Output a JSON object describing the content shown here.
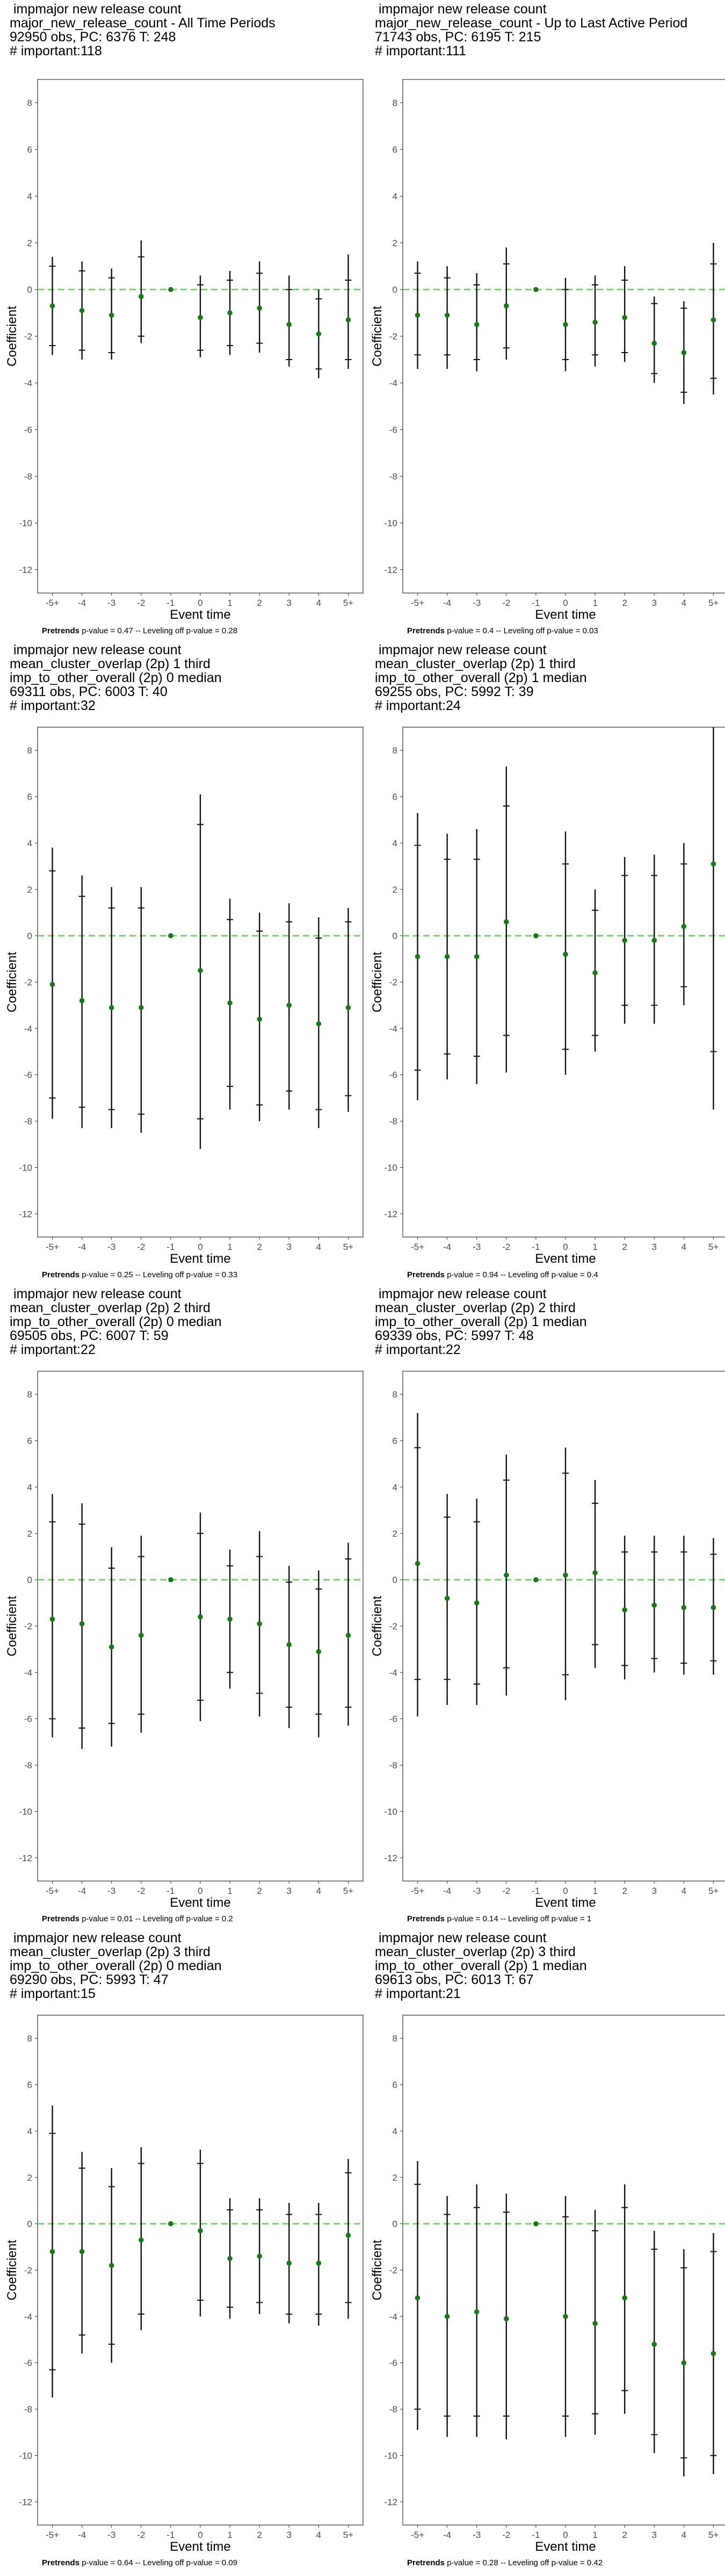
{
  "chart_data": [
    {
      "type": "scatter",
      "title_lines": [
        " impmajor new release count",
        "major_new_release_count - All Time Periods",
        "92950 obs, PC: 6376 T: 248",
        "# important:118"
      ],
      "xlabel": "Event time",
      "ylabel": "Coefficient",
      "categories": [
        "-5+",
        "-4",
        "-3",
        "-2",
        "-1",
        "0",
        "1",
        "2",
        "3",
        "4",
        "5+"
      ],
      "ylim": [
        -13,
        9
      ],
      "yticks": [
        -12,
        -10,
        -8,
        -6,
        -4,
        -2,
        0,
        2,
        4,
        6,
        8
      ],
      "estimate": [
        -0.7,
        -0.9,
        -1.1,
        -0.3,
        0,
        -1.2,
        -1.0,
        -0.8,
        -1.5,
        -1.9,
        -1.3
      ],
      "ci90": [
        [
          -2.4,
          1.0
        ],
        [
          -2.6,
          0.8
        ],
        [
          -2.7,
          0.5
        ],
        [
          -2.0,
          1.4
        ],
        [
          0,
          0
        ],
        [
          -2.6,
          0.2
        ],
        [
          -2.4,
          0.4
        ],
        [
          -2.3,
          0.7
        ],
        [
          -3.0,
          0.0
        ],
        [
          -3.4,
          -0.4
        ],
        [
          -3.0,
          0.4
        ]
      ],
      "ci95": [
        [
          -2.8,
          1.4
        ],
        [
          -3.0,
          1.2
        ],
        [
          -3.0,
          0.9
        ],
        [
          -2.3,
          2.1
        ],
        [
          0,
          0
        ],
        [
          -2.9,
          0.6
        ],
        [
          -2.8,
          0.8
        ],
        [
          -2.7,
          1.2
        ],
        [
          -3.3,
          0.6
        ],
        [
          -3.8,
          0.0
        ],
        [
          -3.4,
          1.5
        ]
      ],
      "ref_line": 0,
      "footnote_prefix": "Pretrends",
      "footnote": " p-value = 0.47 -- Leveling off p-value = 0.28"
    },
    {
      "type": "scatter",
      "title_lines": [
        " impmajor new release count",
        "major_new_release_count - Up to Last Active Period",
        "71743 obs, PC: 6195 T: 215",
        "# important:111"
      ],
      "xlabel": "Event time",
      "ylabel": "Coefficient",
      "categories": [
        "-5+",
        "-4",
        "-3",
        "-2",
        "-1",
        "0",
        "1",
        "2",
        "3",
        "4",
        "5+"
      ],
      "ylim": [
        -13,
        9
      ],
      "yticks": [
        -12,
        -10,
        -8,
        -6,
        -4,
        -2,
        0,
        2,
        4,
        6,
        8
      ],
      "estimate": [
        -1.1,
        -1.1,
        -1.5,
        -0.7,
        0,
        -1.5,
        -1.4,
        -1.2,
        -2.3,
        -2.7,
        -1.3
      ],
      "ci90": [
        [
          -2.8,
          0.7
        ],
        [
          -2.8,
          0.5
        ],
        [
          -3.0,
          0.2
        ],
        [
          -2.5,
          1.1
        ],
        [
          0,
          0
        ],
        [
          -3.0,
          0.0
        ],
        [
          -2.8,
          0.2
        ],
        [
          -2.7,
          0.4
        ],
        [
          -3.6,
          -0.6
        ],
        [
          -4.4,
          -0.8
        ],
        [
          -3.8,
          1.1
        ]
      ],
      "ci95": [
        [
          -3.4,
          1.2
        ],
        [
          -3.4,
          1.0
        ],
        [
          -3.5,
          0.7
        ],
        [
          -3.0,
          1.8
        ],
        [
          0,
          0
        ],
        [
          -3.5,
          0.5
        ],
        [
          -3.3,
          0.6
        ],
        [
          -3.1,
          1.0
        ],
        [
          -4.0,
          -0.3
        ],
        [
          -4.9,
          -0.5
        ],
        [
          -4.5,
          2.0
        ]
      ],
      "ref_line": 0,
      "footnote_prefix": "Pretrends",
      "footnote": " p-value = 0.4 -- Leveling off p-value = 0.03"
    },
    {
      "type": "scatter",
      "title_lines": [
        " impmajor new release count",
        "mean_cluster_overlap (2p) 1 third",
        "imp_to_other_overall (2p) 0 median",
        "69311 obs, PC: 6003 T: 40",
        "# important:32"
      ],
      "xlabel": "Event time",
      "ylabel": "Coefficient",
      "categories": [
        "-5+",
        "-4",
        "-3",
        "-2",
        "-1",
        "0",
        "1",
        "2",
        "3",
        "4",
        "5+"
      ],
      "ylim": [
        -13,
        9
      ],
      "yticks": [
        -12,
        -10,
        -8,
        -6,
        -4,
        -2,
        0,
        2,
        4,
        6,
        8
      ],
      "estimate": [
        -2.1,
        -2.8,
        -3.1,
        -3.1,
        0,
        -1.5,
        -2.9,
        -3.6,
        -3.0,
        -3.8,
        -3.1
      ],
      "ci90": [
        [
          -7.0,
          2.8
        ],
        [
          -7.4,
          1.7
        ],
        [
          -7.5,
          1.2
        ],
        [
          -7.7,
          1.2
        ],
        [
          0,
          0
        ],
        [
          -7.9,
          4.8
        ],
        [
          -6.5,
          0.7
        ],
        [
          -7.3,
          0.2
        ],
        [
          -6.7,
          0.6
        ],
        [
          -7.5,
          -0.1
        ],
        [
          -6.9,
          0.6
        ]
      ],
      "ci95": [
        [
          -7.9,
          3.8
        ],
        [
          -8.3,
          2.6
        ],
        [
          -8.3,
          2.1
        ],
        [
          -8.5,
          2.1
        ],
        [
          0,
          0
        ],
        [
          -9.2,
          6.1
        ],
        [
          -7.5,
          1.6
        ],
        [
          -8.0,
          1.0
        ],
        [
          -7.5,
          1.4
        ],
        [
          -8.3,
          0.8
        ],
        [
          -7.6,
          1.2
        ]
      ],
      "ref_line": 0,
      "footnote_prefix": "Pretrends",
      "footnote": " p-value = 0.25 -- Leveling off p-value = 0.33"
    },
    {
      "type": "scatter",
      "title_lines": [
        " impmajor new release count",
        "mean_cluster_overlap (2p) 1 third",
        "imp_to_other_overall (2p) 1 median",
        "69255 obs, PC: 5992 T: 39",
        "# important:24"
      ],
      "xlabel": "Event time",
      "ylabel": "Coefficient",
      "categories": [
        "-5+",
        "-4",
        "-3",
        "-2",
        "-1",
        "0",
        "1",
        "2",
        "3",
        "4",
        "5+"
      ],
      "ylim": [
        -13,
        9
      ],
      "yticks": [
        -12,
        -10,
        -8,
        -6,
        -4,
        -2,
        0,
        2,
        4,
        6,
        8
      ],
      "estimate": [
        -0.9,
        -0.9,
        -0.9,
        0.6,
        0,
        -0.8,
        -1.6,
        -0.2,
        -0.2,
        0.4,
        3.1
      ],
      "ci90": [
        [
          -5.8,
          3.9
        ],
        [
          -5.1,
          3.3
        ],
        [
          -5.2,
          3.3
        ],
        [
          -4.3,
          5.6
        ],
        [
          0,
          0
        ],
        [
          -4.9,
          3.1
        ],
        [
          -4.3,
          1.1
        ],
        [
          -3.0,
          2.6
        ],
        [
          -3.0,
          2.6
        ],
        [
          -2.2,
          3.1
        ],
        [
          -5.0,
          11.0
        ]
      ],
      "ci95": [
        [
          -7.1,
          5.3
        ],
        [
          -6.2,
          4.4
        ],
        [
          -6.4,
          4.6
        ],
        [
          -5.9,
          7.3
        ],
        [
          0,
          0
        ],
        [
          -6.0,
          4.5
        ],
        [
          -5.0,
          2.0
        ],
        [
          -3.8,
          3.4
        ],
        [
          -3.8,
          3.5
        ],
        [
          -3.0,
          4.0
        ],
        [
          -7.5,
          12.5
        ]
      ],
      "ref_line": 0,
      "footnote_prefix": "Pretrends",
      "footnote": " p-value = 0.94 -- Leveling off p-value = 0.4"
    },
    {
      "type": "scatter",
      "title_lines": [
        " impmajor new release count",
        "mean_cluster_overlap (2p) 2 third",
        "imp_to_other_overall (2p) 0 median",
        "69505 obs, PC: 6007 T: 59",
        "# important:22"
      ],
      "xlabel": "Event time",
      "ylabel": "Coefficient",
      "categories": [
        "-5+",
        "-4",
        "-3",
        "-2",
        "-1",
        "0",
        "1",
        "2",
        "3",
        "4",
        "5+"
      ],
      "ylim": [
        -13,
        9
      ],
      "yticks": [
        -12,
        -10,
        -8,
        -6,
        -4,
        -2,
        0,
        2,
        4,
        6,
        8
      ],
      "estimate": [
        -1.7,
        -1.9,
        -2.9,
        -2.4,
        0,
        -1.6,
        -1.7,
        -1.9,
        -2.8,
        -3.1,
        -2.4
      ],
      "ci90": [
        [
          -6.0,
          2.5
        ],
        [
          -6.4,
          2.4
        ],
        [
          -6.2,
          0.5
        ],
        [
          -5.8,
          1.0
        ],
        [
          0,
          0
        ],
        [
          -5.2,
          2.0
        ],
        [
          -4.0,
          0.6
        ],
        [
          -4.9,
          1.0
        ],
        [
          -5.5,
          -0.1
        ],
        [
          -5.8,
          -0.4
        ],
        [
          -5.5,
          0.9
        ]
      ],
      "ci95": [
        [
          -6.8,
          3.7
        ],
        [
          -7.3,
          3.3
        ],
        [
          -7.2,
          1.4
        ],
        [
          -6.6,
          1.9
        ],
        [
          0,
          0
        ],
        [
          -6.1,
          2.9
        ],
        [
          -4.7,
          1.3
        ],
        [
          -5.9,
          2.1
        ],
        [
          -6.4,
          0.6
        ],
        [
          -6.8,
          0.4
        ],
        [
          -6.3,
          1.6
        ]
      ],
      "ref_line": 0,
      "footnote_prefix": "Pretrends",
      "footnote": " p-value = 0.01 -- Leveling off p-value = 0.2"
    },
    {
      "type": "scatter",
      "title_lines": [
        " impmajor new release count",
        "mean_cluster_overlap (2p) 2 third",
        "imp_to_other_overall (2p) 1 median",
        "69339 obs, PC: 5997 T: 48",
        "# important:22"
      ],
      "xlabel": "Event time",
      "ylabel": "Coefficient",
      "categories": [
        "-5+",
        "-4",
        "-3",
        "-2",
        "-1",
        "0",
        "1",
        "2",
        "3",
        "4",
        "5+"
      ],
      "ylim": [
        -13,
        9
      ],
      "yticks": [
        -12,
        -10,
        -8,
        -6,
        -4,
        -2,
        0,
        2,
        4,
        6,
        8
      ],
      "estimate": [
        0.7,
        -0.8,
        -1.0,
        0.2,
        0,
        0.2,
        0.3,
        -1.3,
        -1.1,
        -1.2,
        -1.2
      ],
      "ci90": [
        [
          -4.3,
          5.7
        ],
        [
          -4.3,
          2.7
        ],
        [
          -4.5,
          2.5
        ],
        [
          -3.8,
          4.3
        ],
        [
          0,
          0
        ],
        [
          -4.1,
          4.6
        ],
        [
          -2.8,
          3.3
        ],
        [
          -3.7,
          1.2
        ],
        [
          -3.4,
          1.2
        ],
        [
          -3.6,
          1.2
        ],
        [
          -3.5,
          1.1
        ]
      ],
      "ci95": [
        [
          -5.9,
          7.2
        ],
        [
          -5.4,
          3.7
        ],
        [
          -5.4,
          3.5
        ],
        [
          -5.0,
          5.4
        ],
        [
          0,
          0
        ],
        [
          -5.2,
          5.7
        ],
        [
          -3.8,
          4.3
        ],
        [
          -4.3,
          1.9
        ],
        [
          -4.0,
          1.9
        ],
        [
          -4.1,
          1.9
        ],
        [
          -4.1,
          1.8
        ]
      ],
      "ref_line": 0,
      "footnote_prefix": "Pretrends",
      "footnote": " p-value = 0.14 -- Leveling off p-value = 1"
    },
    {
      "type": "scatter",
      "title_lines": [
        " impmajor new release count",
        "mean_cluster_overlap (2p) 3 third",
        "imp_to_other_overall (2p) 0 median",
        "69290 obs, PC: 5993 T: 47",
        "# important:15"
      ],
      "xlabel": "Event time",
      "ylabel": "Coefficient",
      "categories": [
        "-5+",
        "-4",
        "-3",
        "-2",
        "-1",
        "0",
        "1",
        "2",
        "3",
        "4",
        "5+"
      ],
      "ylim": [
        -13,
        9
      ],
      "yticks": [
        -12,
        -10,
        -8,
        -6,
        -4,
        -2,
        0,
        2,
        4,
        6,
        8
      ],
      "estimate": [
        -1.2,
        -1.2,
        -1.8,
        -0.7,
        0,
        -0.3,
        -1.5,
        -1.4,
        -1.7,
        -1.7,
        -0.5
      ],
      "ci90": [
        [
          -6.3,
          3.9
        ],
        [
          -4.8,
          2.4
        ],
        [
          -5.2,
          1.6
        ],
        [
          -3.9,
          2.6
        ],
        [
          0,
          0
        ],
        [
          -3.3,
          2.6
        ],
        [
          -3.6,
          0.6
        ],
        [
          -3.4,
          0.6
        ],
        [
          -3.9,
          0.4
        ],
        [
          -3.9,
          0.4
        ],
        [
          -3.4,
          2.2
        ]
      ],
      "ci95": [
        [
          -7.5,
          5.1
        ],
        [
          -5.6,
          3.1
        ],
        [
          -6.0,
          2.4
        ],
        [
          -4.6,
          3.3
        ],
        [
          0,
          0
        ],
        [
          -4.0,
          3.2
        ],
        [
          -4.1,
          1.1
        ],
        [
          -3.9,
          1.1
        ],
        [
          -4.3,
          0.9
        ],
        [
          -4.4,
          0.9
        ],
        [
          -4.1,
          2.8
        ]
      ],
      "ref_line": 0,
      "footnote_prefix": "Pretrends",
      "footnote": " p-value = 0.64 -- Leveling off p-value = 0.09"
    },
    {
      "type": "scatter",
      "title_lines": [
        " impmajor new release count",
        "mean_cluster_overlap (2p) 3 third",
        "imp_to_other_overall (2p) 1 median",
        "69613 obs, PC: 6013 T: 67",
        "# important:21"
      ],
      "xlabel": "Event time",
      "ylabel": "Coefficient",
      "categories": [
        "-5+",
        "-4",
        "-3",
        "-2",
        "-1",
        "0",
        "1",
        "2",
        "3",
        "4",
        "5+"
      ],
      "ylim": [
        -13,
        9
      ],
      "yticks": [
        -12,
        -10,
        -8,
        -6,
        -4,
        -2,
        0,
        2,
        4,
        6,
        8
      ],
      "estimate": [
        -3.2,
        -4.0,
        -3.8,
        -4.1,
        0,
        -4.0,
        -4.3,
        -3.2,
        -5.2,
        -6.0,
        -5.6
      ],
      "ci90": [
        [
          -8.0,
          1.7
        ],
        [
          -8.3,
          0.4
        ],
        [
          -8.3,
          0.7
        ],
        [
          -8.3,
          0.5
        ],
        [
          0,
          0
        ],
        [
          -8.3,
          0.3
        ],
        [
          -8.2,
          -0.3
        ],
        [
          -7.2,
          0.7
        ],
        [
          -9.1,
          -1.1
        ],
        [
          -10.1,
          -1.9
        ],
        [
          -10.0,
          -1.2
        ]
      ],
      "ci95": [
        [
          -8.9,
          2.7
        ],
        [
          -9.2,
          1.2
        ],
        [
          -9.2,
          1.7
        ],
        [
          -9.3,
          1.3
        ],
        [
          0,
          0
        ],
        [
          -9.2,
          1.2
        ],
        [
          -9.1,
          0.6
        ],
        [
          -8.2,
          1.7
        ],
        [
          -9.9,
          -0.3
        ],
        [
          -10.9,
          -1.1
        ],
        [
          -10.8,
          -0.4
        ]
      ],
      "ref_line": 0,
      "footnote_prefix": "Pretrends",
      "footnote": " p-value = 0.28 -- Leveling off p-value = 0.42"
    }
  ],
  "colors": {
    "point": "#1a7a1a",
    "ref_line": "#56e04a",
    "bar": "#111111",
    "panel_border": "#333333",
    "tick_text": "#4d4d4d"
  }
}
